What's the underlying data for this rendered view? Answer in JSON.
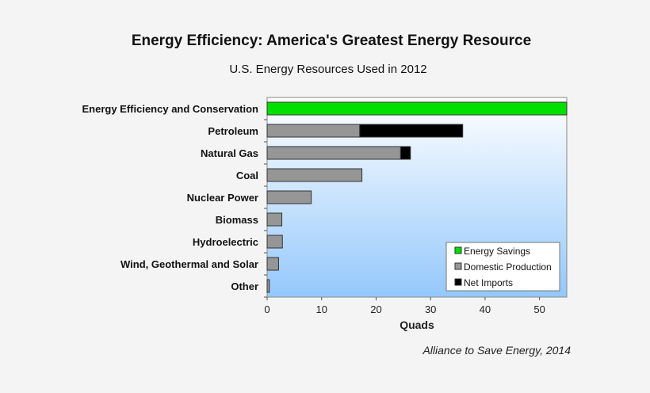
{
  "chart_data": {
    "type": "bar",
    "orientation": "horizontal",
    "stacked": true,
    "title": "Energy Efficiency: America's Greatest Energy Resource",
    "subtitle": "U.S. Energy Resources Used in 2012",
    "xlabel": "Quads",
    "xlim": [
      0,
      55
    ],
    "xticks": [
      0,
      10,
      20,
      30,
      40,
      50
    ],
    "categories": [
      "Energy Efficiency and Conservation",
      "Petroleum",
      "Natural Gas",
      "Coal",
      "Nuclear Power",
      "Biomass",
      "Hydroelectric",
      "Wind, Geothermal and Solar",
      "Other"
    ],
    "series": [
      {
        "name": "Energy Savings",
        "color": "#00e000",
        "values": [
          60,
          0,
          0,
          0,
          0,
          0,
          0,
          0,
          0
        ]
      },
      {
        "name": "Domestic Production",
        "color": "#969696",
        "values": [
          0,
          17.0,
          24.5,
          17.4,
          8.1,
          2.7,
          2.8,
          2.1,
          0.4
        ]
      },
      {
        "name": "Net Imports",
        "color": "#000000",
        "values": [
          0,
          18.9,
          1.8,
          0,
          0,
          0,
          0,
          0,
          0
        ]
      }
    ],
    "legend_position": "bottom-right",
    "grid": false,
    "background": "gradient white to light blue",
    "source": "Alliance to Save Energy, 2014"
  }
}
